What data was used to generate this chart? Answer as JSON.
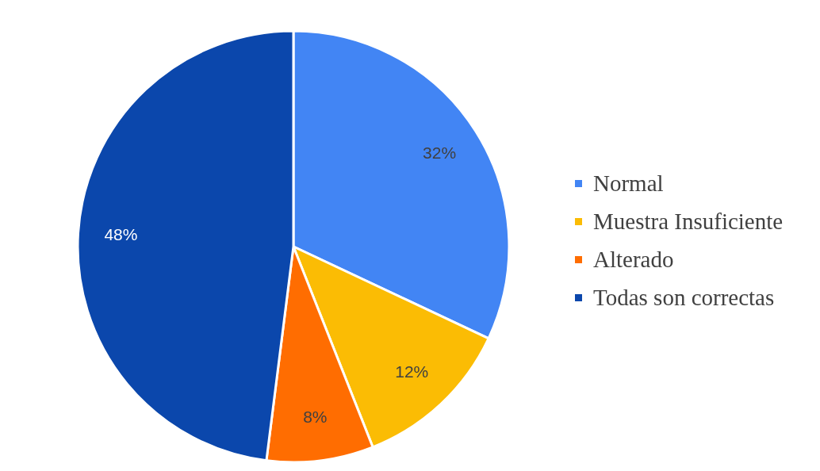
{
  "chart_data": {
    "type": "pie",
    "categories": [
      "Normal",
      "Muestra Insuficiente",
      "Alterado",
      "Todas son correctas"
    ],
    "values": [
      32,
      12,
      8,
      48
    ],
    "colors": [
      "#4285f4",
      "#fbbc04",
      "#ff6d01",
      "#0b47ac"
    ],
    "value_labels": [
      "32%",
      "12%",
      "8%",
      "48%"
    ],
    "legend": "right"
  }
}
